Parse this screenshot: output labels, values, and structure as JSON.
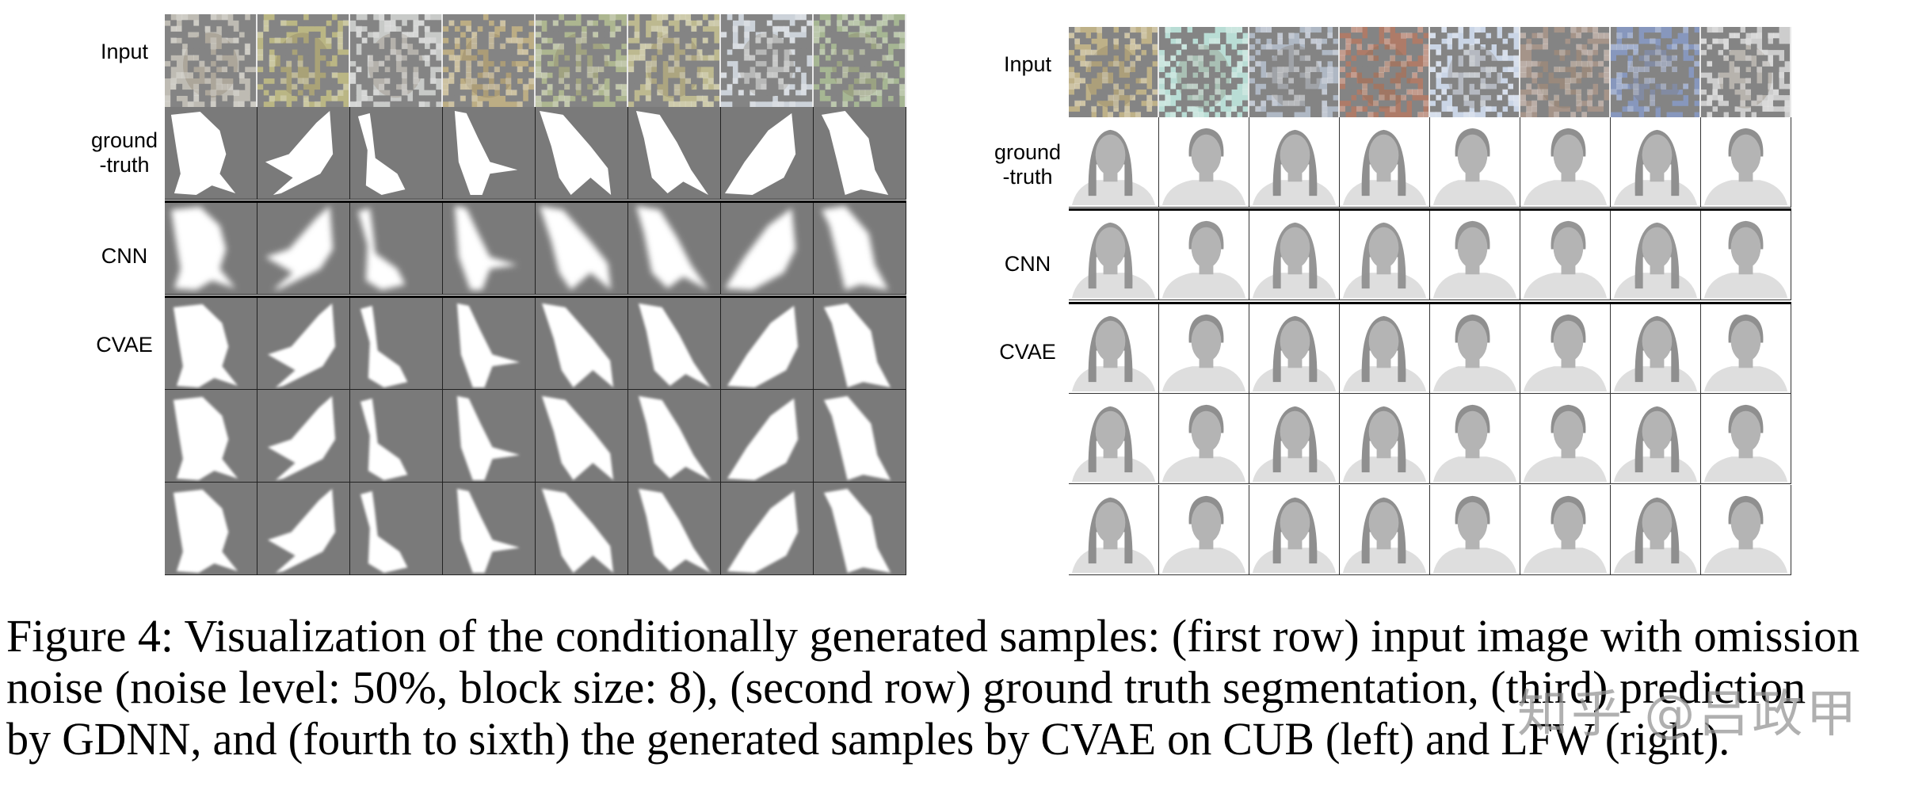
{
  "figure": {
    "left_panel": {
      "dataset": "CUB",
      "row_labels": [
        {
          "lines": [
            "Input"
          ]
        },
        {
          "lines": [
            "ground",
            "-truth"
          ]
        },
        {
          "lines": [
            "CNN"
          ]
        },
        {
          "lines": [
            "CVAE"
          ]
        }
      ],
      "columns": 8,
      "rows": [
        "Input",
        "ground-truth",
        "CNN",
        "CVAE sample 1",
        "CVAE sample 2",
        "CVAE sample 3"
      ],
      "colors": {
        "background": "#7a7a7a",
        "foreground": "#ffffff",
        "noise_block": "#7a7a7a"
      },
      "input_tints": [
        "#b9b6ad",
        "#b5b07a",
        "#c4c6c4",
        "#b7a77a",
        "#a7b087",
        "#b8b487",
        "#c8cfd6",
        "#9fb08a"
      ]
    },
    "right_panel": {
      "dataset": "LFW",
      "row_labels": [
        {
          "lines": [
            "Input"
          ]
        },
        {
          "lines": [
            "ground",
            "-truth"
          ]
        },
        {
          "lines": [
            "CNN"
          ]
        },
        {
          "lines": [
            "CVAE"
          ]
        }
      ],
      "columns": 8,
      "rows": [
        "Input",
        "ground-truth",
        "CNN",
        "CVAE sample 1",
        "CVAE sample 2",
        "CVAE sample 3"
      ],
      "colors": {
        "background": "#ffffff",
        "hair": "#8f8f8f",
        "face": "#b4b4b4",
        "body": "#dedede",
        "noise_block": "#7a7a7a"
      },
      "input_tints": [
        "#b9ab7e",
        "#b4dbd2",
        "#a9b2c0",
        "#a8705c",
        "#c6d2e4",
        "#9e8b80",
        "#7d8fb8",
        "#c9c9c9"
      ]
    },
    "caption": {
      "lines": [
        "Figure 4: Visualization of the conditionally generated samples: (first row) input image with omission",
        "noise (noise level: 50%, block size: 8), (second row) ground truth segmentation, (third) prediction",
        "by GDNN, and (fourth to sixth) the generated samples by CVAE on CUB (left) and LFW (right)."
      ]
    },
    "watermark": "知乎 @吕政甲"
  }
}
